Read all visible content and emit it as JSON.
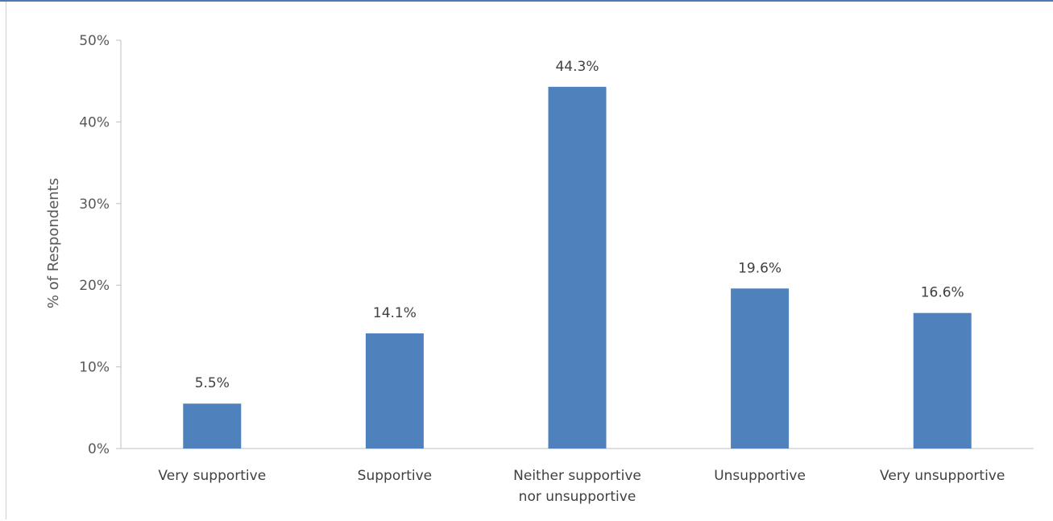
{
  "chart_data": {
    "type": "bar",
    "categories": [
      [
        "Very supportive"
      ],
      [
        "Supportive"
      ],
      [
        "Neither supportive",
        "nor unsupportive"
      ],
      [
        "Unsupportive"
      ],
      [
        "Very unsupportive"
      ]
    ],
    "values": [
      5.5,
      14.1,
      44.3,
      19.6,
      16.6
    ],
    "data_labels": [
      "5.5%",
      "14.1%",
      "44.3%",
      "19.6%",
      "16.6%"
    ],
    "ylabel": "% of Respondents",
    "ylim": [
      0,
      50
    ],
    "yticks": [
      0,
      10,
      20,
      30,
      40,
      50
    ],
    "ytick_labels": [
      "0%",
      "10%",
      "20%",
      "30%",
      "40%",
      "50%"
    ],
    "bar_color": "#4f81bd",
    "grid": false,
    "legend": "none"
  }
}
